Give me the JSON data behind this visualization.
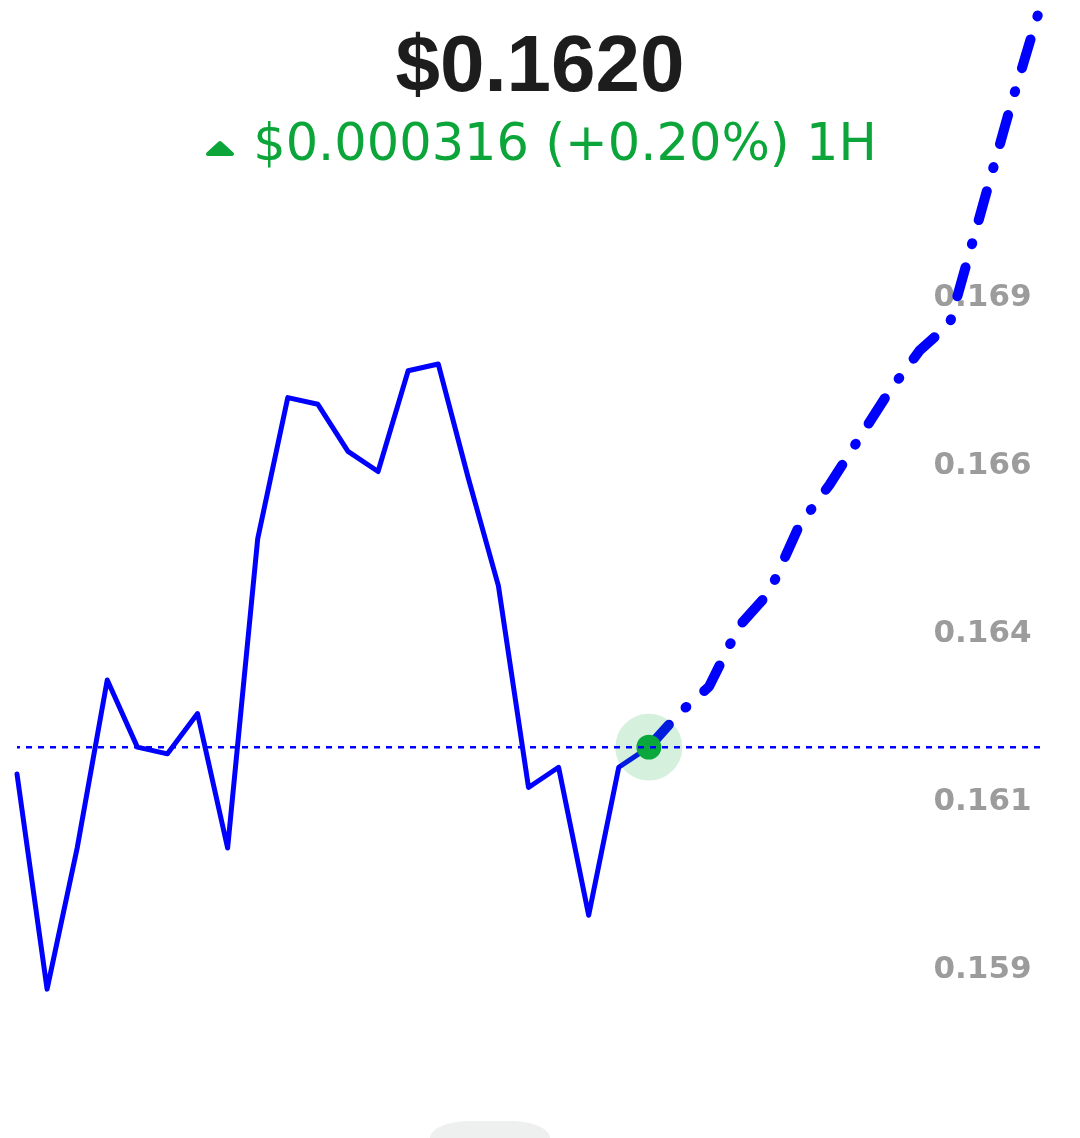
{
  "chart_data": {
    "type": "line",
    "title": "$0.1620",
    "subtitle": "$0.000316 (+0.20%) 1H",
    "categories": [
      null,
      null,
      null,
      null,
      null,
      null,
      null,
      null,
      null,
      null,
      null,
      null,
      null,
      null,
      null,
      null,
      null,
      null,
      null,
      null,
      null,
      null,
      null,
      null,
      null,
      null,
      null,
      null,
      null,
      null,
      null,
      null,
      null,
      null,
      null
    ],
    "series": [
      {
        "color": "#0000ff",
        "line_style": "solid",
        "values": [
          0.1616,
          0.1584,
          0.1605,
          0.163,
          0.162,
          0.1619,
          0.1625,
          0.1605,
          0.1651,
          0.1672,
          0.1671,
          0.1664,
          0.1661,
          0.1676,
          0.1677,
          0.166,
          0.1644,
          0.1614,
          0.1617,
          0.1595,
          0.1617,
          0.162,
          null,
          null,
          null,
          null,
          null,
          null,
          null,
          null,
          null,
          null,
          null,
          null,
          null
        ]
      },
      {
        "color": "#0000ff",
        "line_style": "dashed",
        "values": [
          null,
          null,
          null,
          null,
          null,
          null,
          null,
          null,
          null,
          null,
          null,
          null,
          null,
          null,
          null,
          null,
          null,
          null,
          null,
          null,
          null,
          0.162,
          0.1625,
          0.1629,
          0.1638,
          0.1643,
          0.1653,
          0.1659,
          0.1666,
          0.1673,
          0.1679,
          0.1683,
          0.1699,
          0.1715,
          0.173
        ]
      },
      {
        "type": "scatter",
        "color": "#0aa83c",
        "marker": "circle",
        "values": [
          null,
          null,
          null,
          null,
          null,
          null,
          null,
          null,
          null,
          null,
          null,
          null,
          null,
          null,
          null,
          null,
          null,
          null,
          null,
          null,
          null,
          0.162,
          null,
          null,
          null,
          null,
          null,
          null,
          null,
          null,
          null,
          null,
          null,
          null,
          null
        ]
      }
    ],
    "ylim": [
      0.1562,
      0.1731
    ],
    "yticks": [
      {
        "value": 0.1587,
        "label": "0.159"
      },
      {
        "value": 0.1612,
        "label": "0.161"
      },
      {
        "value": 0.1637,
        "label": "0.164"
      },
      {
        "value": 0.1662,
        "label": "0.166"
      },
      {
        "value": 0.1687,
        "label": "0.169"
      }
    ],
    "ref_lines": [
      {
        "axis": "y",
        "value": 0.162,
        "color": "#0000ff",
        "line_style": "dotted"
      }
    ]
  }
}
